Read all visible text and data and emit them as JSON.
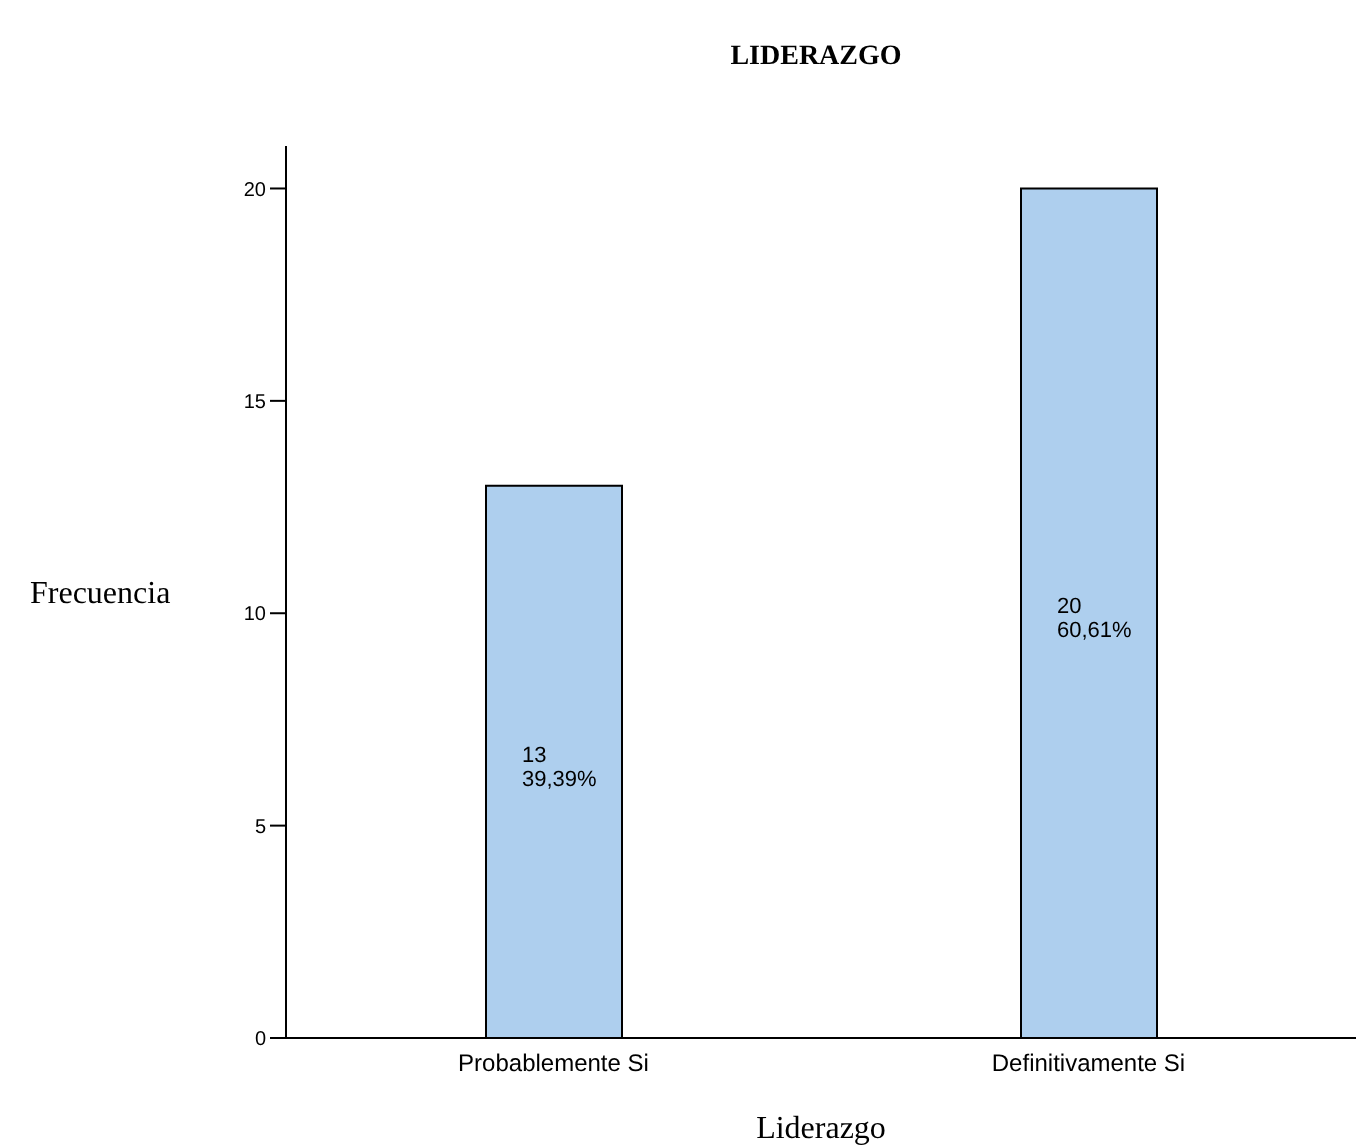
{
  "chart_data": {
    "type": "bar",
    "title": "LIDERAZGO",
    "xlabel": "Liderazgo",
    "ylabel": "Frecuencia",
    "categories": [
      "Probablemente Si",
      "Definitivamente Si"
    ],
    "values": [
      13,
      20
    ],
    "color": "#aecfee",
    "value_labels": [
      "13\n39,39%",
      "20\n60,61%"
    ],
    "ylim": [
      0,
      21
    ],
    "yticks": [
      0,
      5,
      10,
      15,
      20
    ],
    "grid": false
  }
}
